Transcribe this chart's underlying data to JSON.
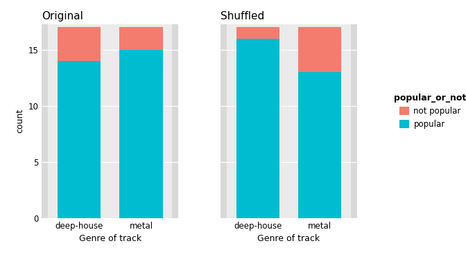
{
  "original": {
    "categories": [
      "deep-house",
      "metal"
    ],
    "popular": [
      14,
      15
    ],
    "not_popular": [
      3,
      2
    ]
  },
  "shuffled": {
    "categories": [
      "deep-house",
      "metal"
    ],
    "popular": [
      16,
      13
    ],
    "not_popular": [
      1,
      4
    ]
  },
  "color_popular": "#00BCD0",
  "color_not_popular": "#F47C6E",
  "bg_color": "#FFFFFF",
  "panel_bg": "#EBEBEB",
  "strip_bg": "#D9D9D9",
  "title_original": "Original",
  "title_shuffled": "Shuffled",
  "xlabel": "Genre of track",
  "ylabel": "count",
  "legend_title": "popular_or_not",
  "legend_labels": [
    "not popular",
    "popular"
  ],
  "yticks": [
    0,
    5,
    10,
    15
  ],
  "ylim": [
    0,
    17.3
  ],
  "bar_width": 0.7
}
